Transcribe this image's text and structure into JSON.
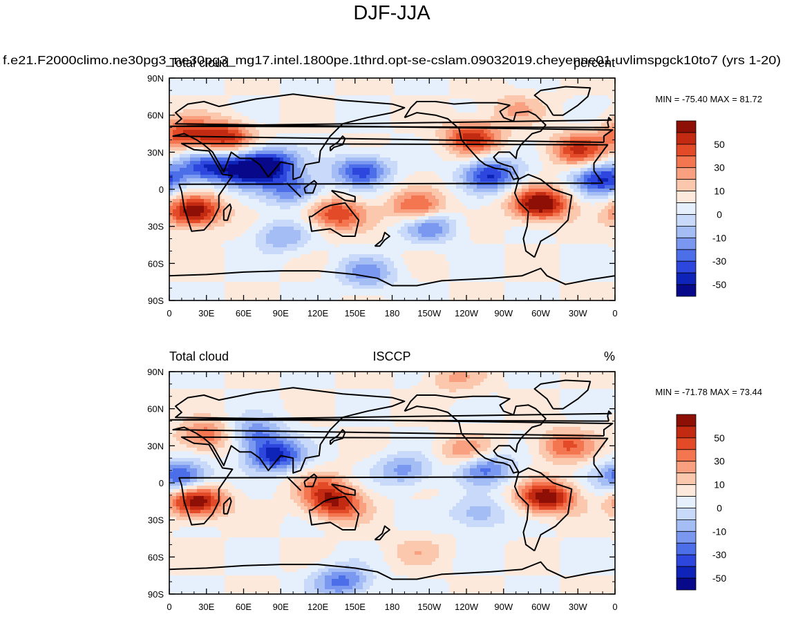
{
  "figure_title": "DJF-JJA",
  "chart_data": [
    {
      "type": "heatmap",
      "panel": "model",
      "case_title": "f.e21.F2000climo.ne30pg3_ne30pg3_mg17.intel.1800pe.1thrd.opt-se-cslam.09032019.cheyenne01.uvlimspgck10to7 (yrs 1-20)",
      "left_title": "Total cloud",
      "center_title": "",
      "right_title": "percent",
      "stats": "MIN = -75.40 MAX =  81.72",
      "min": -75.4,
      "max": 81.72,
      "x_ticks": [
        "0",
        "30E",
        "60E",
        "90E",
        "120E",
        "150E",
        "180",
        "150W",
        "120W",
        "90W",
        "60W",
        "30W",
        "0"
      ],
      "y_ticks": [
        "90N",
        "60N",
        "30N",
        "0",
        "30S",
        "60S",
        "90S"
      ],
      "xlim": [
        0,
        360
      ],
      "ylim": [
        -90,
        90
      ],
      "colorbar_labels": [
        "50",
        "30",
        "10",
        "0",
        "-10",
        "-30",
        "-50"
      ],
      "field_features": [
        {
          "lon": 20,
          "lat": -18,
          "value": 70
        },
        {
          "lon": 45,
          "lat": 42,
          "value": 55
        },
        {
          "lon": 12,
          "lat": 45,
          "value": 45
        },
        {
          "lon": 80,
          "lat": 20,
          "value": -70
        },
        {
          "lon": 60,
          "lat": 15,
          "value": -55
        },
        {
          "lon": 30,
          "lat": 18,
          "value": -50
        },
        {
          "lon": 135,
          "lat": -20,
          "value": 50
        },
        {
          "lon": 200,
          "lat": -15,
          "value": 45
        },
        {
          "lon": 155,
          "lat": 15,
          "value": -55
        },
        {
          "lon": 245,
          "lat": 42,
          "value": 55
        },
        {
          "lon": 300,
          "lat": -12,
          "value": 75
        },
        {
          "lon": 330,
          "lat": 32,
          "value": 50
        },
        {
          "lon": 260,
          "lat": 12,
          "value": -60
        },
        {
          "lon": 350,
          "lat": 8,
          "value": -60
        },
        {
          "lon": 100,
          "lat": 0,
          "value": -45
        },
        {
          "lon": 210,
          "lat": -30,
          "value": -40
        },
        {
          "lon": 90,
          "lat": -38,
          "value": -30
        },
        {
          "lon": 160,
          "lat": -68,
          "value": -35
        },
        {
          "lon": 280,
          "lat": 65,
          "value": 20
        }
      ]
    },
    {
      "type": "heatmap",
      "panel": "observations",
      "left_title": "Total cloud",
      "center_title": "ISCCP",
      "right_title": "%",
      "stats": "MIN = -71.78 MAX =  73.44",
      "min": -71.78,
      "max": 73.44,
      "x_ticks": [
        "0",
        "30E",
        "60E",
        "90E",
        "120E",
        "150E",
        "180",
        "150W",
        "120W",
        "90W",
        "60W",
        "30W",
        "0"
      ],
      "y_ticks": [
        "90N",
        "60N",
        "30N",
        "0",
        "30S",
        "60S",
        "90S"
      ],
      "xlim": [
        0,
        360
      ],
      "ylim": [
        -90,
        90
      ],
      "colorbar_labels": [
        "50",
        "30",
        "10",
        "0",
        "-10",
        "-30",
        "-50"
      ],
      "field_features": [
        {
          "lon": 22,
          "lat": -15,
          "value": 70
        },
        {
          "lon": 30,
          "lat": 38,
          "value": 40
        },
        {
          "lon": 85,
          "lat": 22,
          "value": -65
        },
        {
          "lon": 70,
          "lat": 40,
          "value": -40
        },
        {
          "lon": 10,
          "lat": 5,
          "value": -55
        },
        {
          "lon": 135,
          "lat": -18,
          "value": 50
        },
        {
          "lon": 125,
          "lat": -5,
          "value": 35
        },
        {
          "lon": 190,
          "lat": 10,
          "value": -35
        },
        {
          "lon": 240,
          "lat": 25,
          "value": 30
        },
        {
          "lon": 255,
          "lat": 12,
          "value": -45
        },
        {
          "lon": 305,
          "lat": -12,
          "value": 70
        },
        {
          "lon": 320,
          "lat": 30,
          "value": 40
        },
        {
          "lon": 250,
          "lat": -25,
          "value": -30
        },
        {
          "lon": 200,
          "lat": -55,
          "value": 15
        },
        {
          "lon": 140,
          "lat": -80,
          "value": -45
        },
        {
          "lon": 230,
          "lat": 85,
          "value": 20
        }
      ]
    }
  ],
  "colors": {
    "levels": [
      "#08088a",
      "#0e23b8",
      "#2d46dd",
      "#4d6ee9",
      "#7a98f0",
      "#a4bdf5",
      "#c9d9fa",
      "#e6effc",
      "#fde9dc",
      "#fbc8ae",
      "#f8a07f",
      "#f37651",
      "#e24a28",
      "#c22a12",
      "#8e0f05"
    ]
  }
}
